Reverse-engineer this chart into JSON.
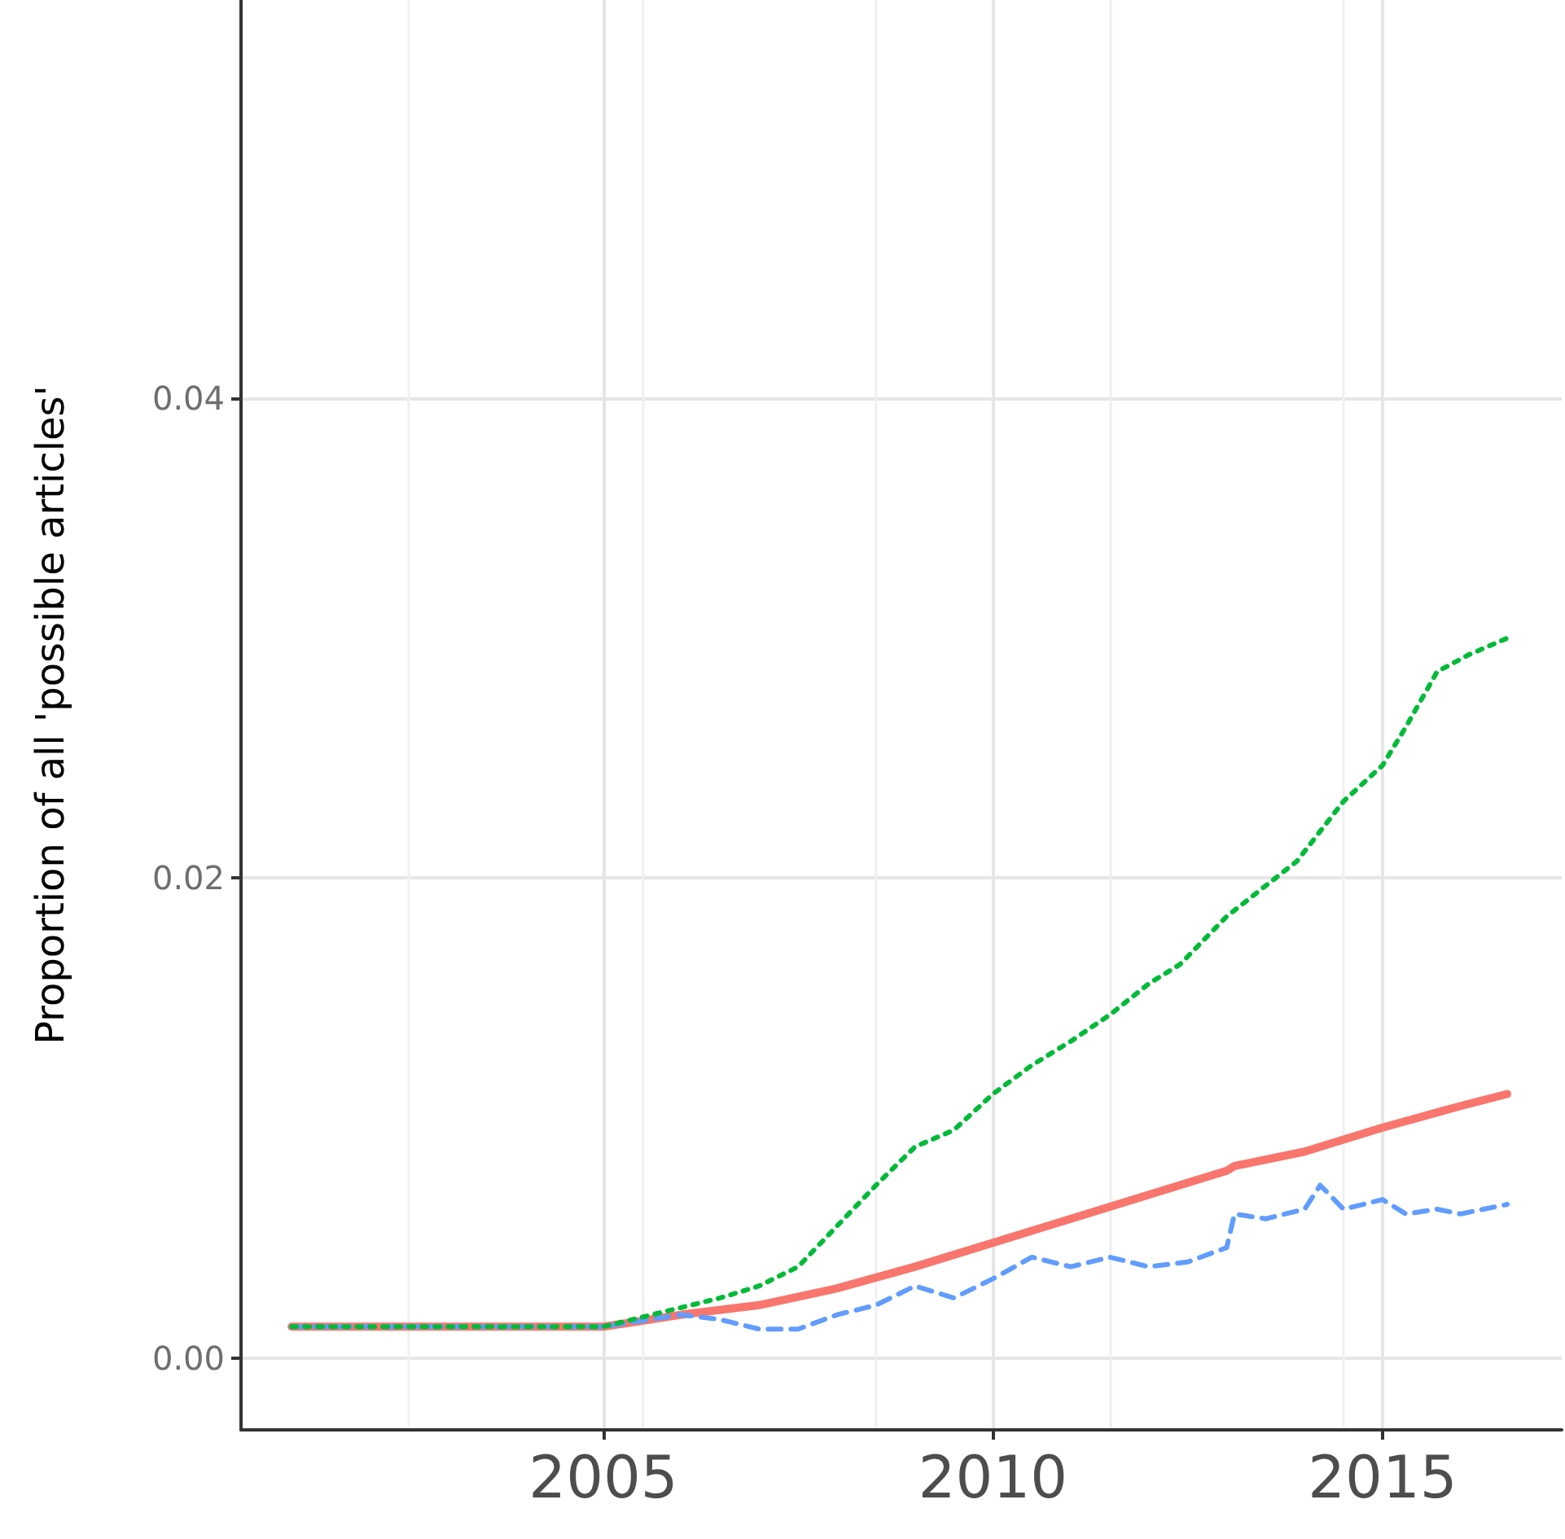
{
  "chart_data": {
    "type": "line",
    "ylabel": "Proportion of all 'possible articles'",
    "xlim": [
      2000.35,
      2017.3
    ],
    "xticks": [
      2005,
      2010,
      2015
    ],
    "ylim": [
      -0.003,
      0.0566
    ],
    "yticks": [
      {
        "value": 0,
        "label": "0.00"
      },
      {
        "value": 0.02,
        "label": "0.02"
      },
      {
        "value": 0.04,
        "label": "0.04"
      }
    ],
    "grid": true,
    "marker": "none",
    "series": [
      {
        "color": "#f8766d",
        "line_style": "solid",
        "x": [
          2001,
          2002,
          2003,
          2004,
          2005,
          2006,
          2007,
          2008,
          2009,
          2010,
          2011,
          2012,
          2013,
          2013.1,
          2014,
          2015,
          2016,
          2016.6
        ],
        "values": [
          0.0013,
          0.0013,
          0.0013,
          0.0013,
          0.0013,
          0.0018,
          0.0022,
          0.0029,
          0.0038,
          0.0048,
          0.0058,
          0.0068,
          0.0078,
          0.008,
          0.0086,
          0.0096,
          0.0105,
          0.011
        ]
      },
      {
        "color": "#00ba38",
        "line_style": "dotted",
        "x": [
          2001,
          2002,
          2003,
          2004,
          2005,
          2006,
          2006.5,
          2007,
          2007.5,
          2008,
          2008.5,
          2009,
          2009.5,
          2010,
          2010.5,
          2011,
          2011.5,
          2012,
          2012.4,
          2013,
          2013.9,
          2014.5,
          2015,
          2015.3,
          2015.7,
          2016.1,
          2016.6
        ],
        "values": [
          0.0013,
          0.0013,
          0.0013,
          0.0013,
          0.0013,
          0.0021,
          0.0025,
          0.003,
          0.0038,
          0.0055,
          0.0072,
          0.0088,
          0.0095,
          0.011,
          0.0122,
          0.0132,
          0.0143,
          0.0156,
          0.0164,
          0.0184,
          0.0207,
          0.0232,
          0.0247,
          0.0263,
          0.0286,
          0.0293,
          0.03
        ]
      },
      {
        "color": "#619cff",
        "line_style": "dashed",
        "x": [
          2001,
          2002,
          2003,
          2004,
          2005,
          2006,
          2006.5,
          2007,
          2007.5,
          2008,
          2008.5,
          2009,
          2009.5,
          2010,
          2010.5,
          2011,
          2011.5,
          2012,
          2012.5,
          2013,
          2013.1,
          2013.5,
          2014,
          2014.2,
          2014.5,
          2015,
          2015.3,
          2015.7,
          2016,
          2016.6
        ],
        "values": [
          0.0013,
          0.0013,
          0.0013,
          0.0013,
          0.0013,
          0.0018,
          0.0016,
          0.0012,
          0.0012,
          0.0018,
          0.0022,
          0.003,
          0.0025,
          0.0033,
          0.0042,
          0.0038,
          0.0042,
          0.0038,
          0.004,
          0.0046,
          0.006,
          0.0058,
          0.0062,
          0.0072,
          0.0062,
          0.0066,
          0.006,
          0.0062,
          0.006,
          0.0064
        ]
      }
    ]
  }
}
